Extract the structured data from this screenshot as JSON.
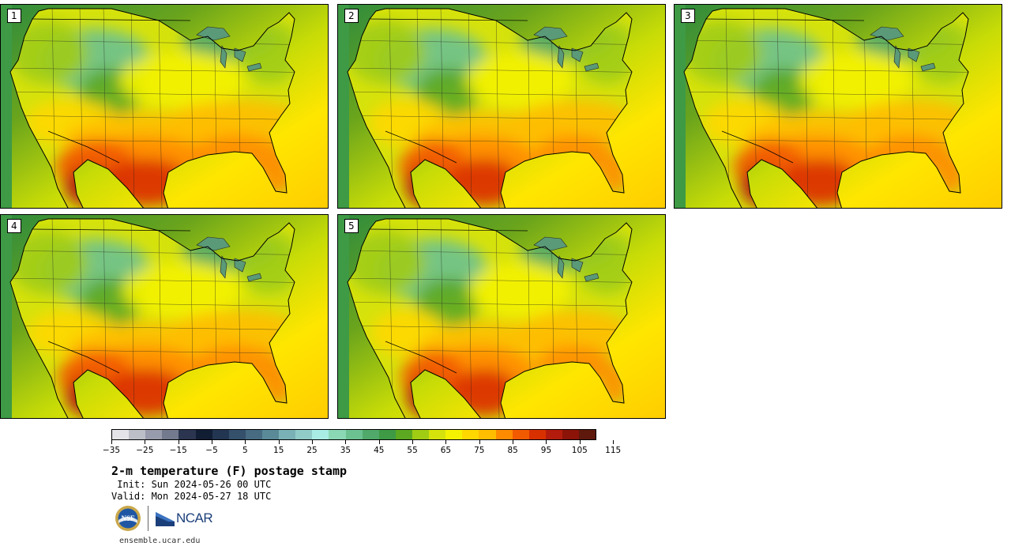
{
  "panels": [
    {
      "label": "1",
      "heat": 1.0
    },
    {
      "label": "2",
      "heat": 0.85
    },
    {
      "label": "3",
      "heat": 0.9
    },
    {
      "label": "4",
      "heat": 0.95
    },
    {
      "label": "5",
      "heat": 0.8
    }
  ],
  "colorbar": {
    "colors": [
      "#e4e4e8",
      "#bdbfc8",
      "#979bab",
      "#737a8e",
      "#2c3550",
      "#111d33",
      "#233651",
      "#34506b",
      "#476b80",
      "#5a8a98",
      "#79b1b6",
      "#90cbc7",
      "#a8ece4",
      "#8ad8b4",
      "#6cc190",
      "#50a96a",
      "#3e9a45",
      "#5ca821",
      "#a0cc14",
      "#d6e20b",
      "#f4f200",
      "#ffd800",
      "#ffbe00",
      "#ff8c00",
      "#f25a00",
      "#d93000",
      "#b31c0c",
      "#8c1308",
      "#5e180c"
    ],
    "ticks": [
      "−35",
      "−25",
      "−15",
      "−5",
      "5",
      "15",
      "25",
      "35",
      "45",
      "55",
      "65",
      "75",
      "85",
      "95",
      "105",
      "115"
    ]
  },
  "title": "2-m temperature (F) postage stamp",
  "init": " Init: Sun 2024-05-26 00 UTC",
  "valid": "Valid: Mon 2024-05-27 18 UTC",
  "logos": {
    "nsf": "NSF",
    "ncar": "NCAR"
  },
  "url": "ensemble.ucar.edu"
}
